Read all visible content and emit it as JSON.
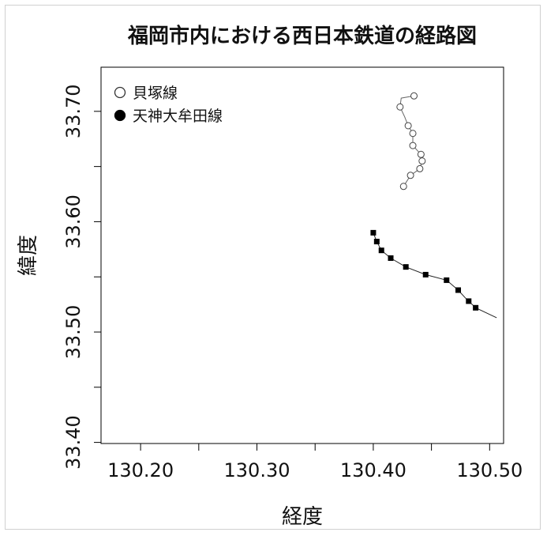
{
  "chart_data": {
    "type": "line",
    "title": "福岡市内における西日本鉄道の経路図",
    "xlabel": "経度",
    "ylabel": "緯度",
    "xlim": [
      130.166,
      130.512
    ],
    "ylim": [
      33.399,
      33.74
    ],
    "x_ticks": [
      130.2,
      130.25,
      130.3,
      130.35,
      130.4,
      130.45,
      130.5
    ],
    "x_tick_labels": [
      "130.20",
      "",
      "130.30",
      "",
      "130.40",
      "",
      "130.50"
    ],
    "y_ticks": [
      33.4,
      33.45,
      33.5,
      33.55,
      33.6,
      33.65,
      33.7
    ],
    "y_tick_labels": [
      "33.40",
      "",
      "33.50",
      "",
      "33.60",
      "",
      "33.70"
    ],
    "grid": false,
    "legend_position": "top-left",
    "series": [
      {
        "name": "貝塚線",
        "marker": "open-circle",
        "line_color": "#666666",
        "points": [
          [
            130.435,
            33.714
          ],
          [
            130.424,
            33.712
          ],
          [
            130.423,
            33.704
          ],
          [
            130.427,
            33.695
          ],
          [
            130.43,
            33.687
          ],
          [
            130.434,
            33.68
          ],
          [
            130.434,
            33.669
          ],
          [
            130.441,
            33.661
          ],
          [
            130.442,
            33.655
          ],
          [
            130.44,
            33.648
          ],
          [
            130.432,
            33.642
          ],
          [
            130.426,
            33.632
          ]
        ],
        "marker_points": [
          [
            130.435,
            33.714
          ],
          [
            130.423,
            33.704
          ],
          [
            130.43,
            33.687
          ],
          [
            130.434,
            33.68
          ],
          [
            130.434,
            33.669
          ],
          [
            130.441,
            33.661
          ],
          [
            130.442,
            33.655
          ],
          [
            130.44,
            33.648
          ],
          [
            130.432,
            33.642
          ],
          [
            130.426,
            33.632
          ]
        ]
      },
      {
        "name": "天神大牟田線",
        "marker": "filled-square",
        "line_color": "#222222",
        "points": [
          [
            130.4,
            33.59
          ],
          [
            130.403,
            33.582
          ],
          [
            130.407,
            33.574
          ],
          [
            130.415,
            33.567
          ],
          [
            130.428,
            33.559
          ],
          [
            130.445,
            33.552
          ],
          [
            130.463,
            33.547
          ],
          [
            130.473,
            33.538
          ],
          [
            130.479,
            33.531
          ],
          [
            130.482,
            33.528
          ],
          [
            130.488,
            33.522
          ],
          [
            130.506,
            33.513
          ]
        ],
        "marker_points": [
          [
            130.4,
            33.59
          ],
          [
            130.403,
            33.582
          ],
          [
            130.407,
            33.574
          ],
          [
            130.415,
            33.567
          ],
          [
            130.428,
            33.559
          ],
          [
            130.445,
            33.552
          ],
          [
            130.463,
            33.547
          ],
          [
            130.473,
            33.538
          ],
          [
            130.482,
            33.528
          ],
          [
            130.488,
            33.522
          ]
        ]
      }
    ]
  }
}
